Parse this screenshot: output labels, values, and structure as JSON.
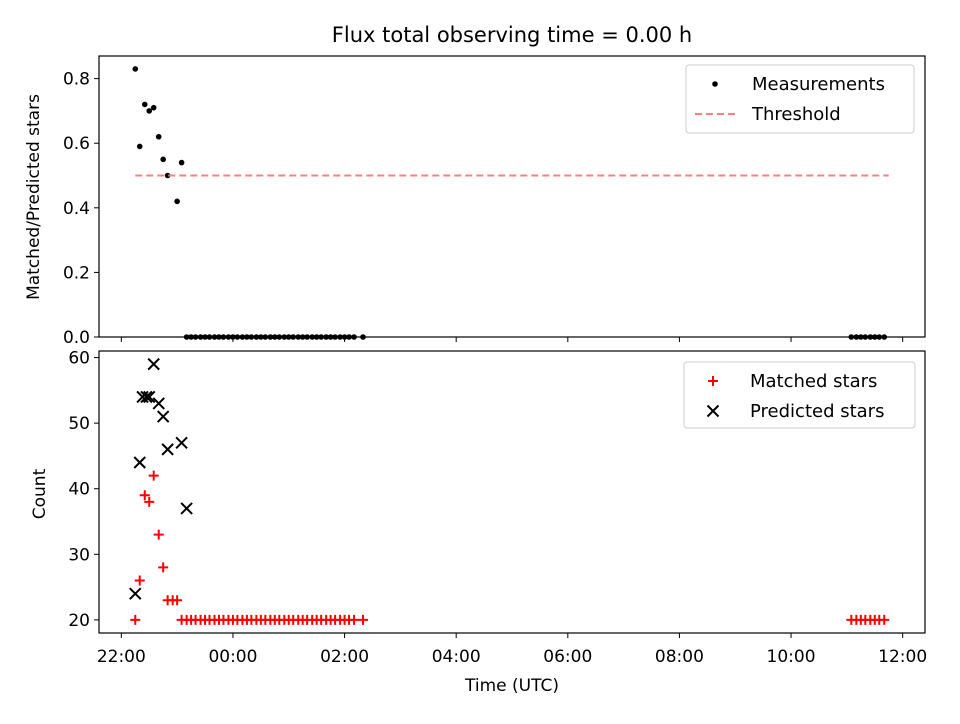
{
  "chart_data": [
    {
      "type": "scatter",
      "title": "Flux total observing time = 0.00 h",
      "xlabel": "",
      "ylabel": "Matched/Predicted stars",
      "ylim": [
        0,
        0.87
      ],
      "yticks": [
        "0.0",
        "0.2",
        "0.4",
        "0.6",
        "0.8"
      ],
      "yticks_values": [
        0,
        0.2,
        0.4,
        0.6,
        0.8
      ],
      "legend_position": "upper-right",
      "series": [
        {
          "name": "Measurements",
          "marker": "dot",
          "color": "#000000",
          "x_hours": [
            22.25,
            22.33,
            22.42,
            22.5,
            22.58,
            22.67,
            22.75,
            22.83,
            23.0,
            23.08,
            23.17,
            23.25,
            23.33,
            23.42,
            23.5,
            23.58,
            23.67,
            23.75,
            23.83,
            23.92,
            24.0,
            24.08,
            24.17,
            24.25,
            24.33,
            24.42,
            24.5,
            24.58,
            24.67,
            24.75,
            24.83,
            24.92,
            25.0,
            25.08,
            25.17,
            25.25,
            25.33,
            25.42,
            25.5,
            25.58,
            25.67,
            25.75,
            25.83,
            25.92,
            26.0,
            26.08,
            26.17,
            26.33,
            35.08,
            35.17,
            35.25,
            35.33,
            35.42,
            35.5,
            35.58,
            35.67
          ],
          "y": [
            0.83,
            0.59,
            0.72,
            0.7,
            0.71,
            0.62,
            0.55,
            0.5,
            0.42,
            0.54,
            0.0,
            0.0,
            0.0,
            0.0,
            0.0,
            0.0,
            0.0,
            0.0,
            0.0,
            0.0,
            0.0,
            0.0,
            0.0,
            0.0,
            0.0,
            0.0,
            0.0,
            0.0,
            0.0,
            0.0,
            0.0,
            0.0,
            0.0,
            0.0,
            0.0,
            0.0,
            0.0,
            0.0,
            0.0,
            0.0,
            0.0,
            0.0,
            0.0,
            0.0,
            0.0,
            0.0,
            0.0,
            0.0,
            0.0,
            0.0,
            0.0,
            0.0,
            0.0,
            0.0,
            0.0,
            0.0
          ]
        },
        {
          "name": "Threshold",
          "marker": "dashed-line",
          "color": "#ff7f7f",
          "x_hours": [
            22.25,
            35.75
          ],
          "y": [
            0.5,
            0.5
          ]
        }
      ]
    },
    {
      "type": "scatter",
      "title": "",
      "xlabel": "Time (UTC)",
      "ylabel": "Count",
      "ylim": [
        18,
        61
      ],
      "yticks": [
        "20",
        "30",
        "40",
        "50",
        "60"
      ],
      "yticks_values": [
        20,
        30,
        40,
        50,
        60
      ],
      "xlim_hours": [
        21.6,
        36.4
      ],
      "xticks": [
        "22:00",
        "00:00",
        "02:00",
        "04:00",
        "06:00",
        "08:00",
        "10:00",
        "12:00"
      ],
      "xticks_hours": [
        22,
        24,
        26,
        28,
        30,
        32,
        34,
        36
      ],
      "legend_position": "upper-right",
      "series": [
        {
          "name": "Matched stars",
          "marker": "plus",
          "color": "#ff0000",
          "x_hours": [
            22.25,
            22.33,
            22.42,
            22.5,
            22.58,
            22.67,
            22.75,
            22.83,
            22.92,
            23.0,
            23.08,
            23.17,
            23.25,
            23.33,
            23.42,
            23.5,
            23.58,
            23.67,
            23.75,
            23.83,
            23.92,
            24.0,
            24.08,
            24.17,
            24.25,
            24.33,
            24.42,
            24.5,
            24.58,
            24.67,
            24.75,
            24.83,
            24.92,
            25.0,
            25.08,
            25.17,
            25.25,
            25.33,
            25.42,
            25.5,
            25.58,
            25.67,
            25.75,
            25.83,
            25.92,
            26.0,
            26.08,
            26.17,
            26.33,
            35.08,
            35.17,
            35.25,
            35.33,
            35.42,
            35.5,
            35.58,
            35.67
          ],
          "y": [
            20,
            26,
            39,
            38,
            42,
            33,
            28,
            23,
            23,
            23,
            20,
            20,
            20,
            20,
            20,
            20,
            20,
            20,
            20,
            20,
            20,
            20,
            20,
            20,
            20,
            20,
            20,
            20,
            20,
            20,
            20,
            20,
            20,
            20,
            20,
            20,
            20,
            20,
            20,
            20,
            20,
            20,
            20,
            20,
            20,
            20,
            20,
            20,
            20,
            20,
            20,
            20,
            20,
            20,
            20,
            20,
            20
          ]
        },
        {
          "name": "Predicted stars",
          "marker": "x",
          "color": "#000000",
          "x_hours": [
            22.25,
            22.33,
            22.38,
            22.45,
            22.5,
            22.58,
            22.67,
            22.75,
            22.83,
            23.08,
            23.17
          ],
          "y": [
            24,
            44,
            54,
            54,
            54,
            59,
            53,
            51,
            46,
            47,
            37
          ]
        }
      ]
    }
  ]
}
